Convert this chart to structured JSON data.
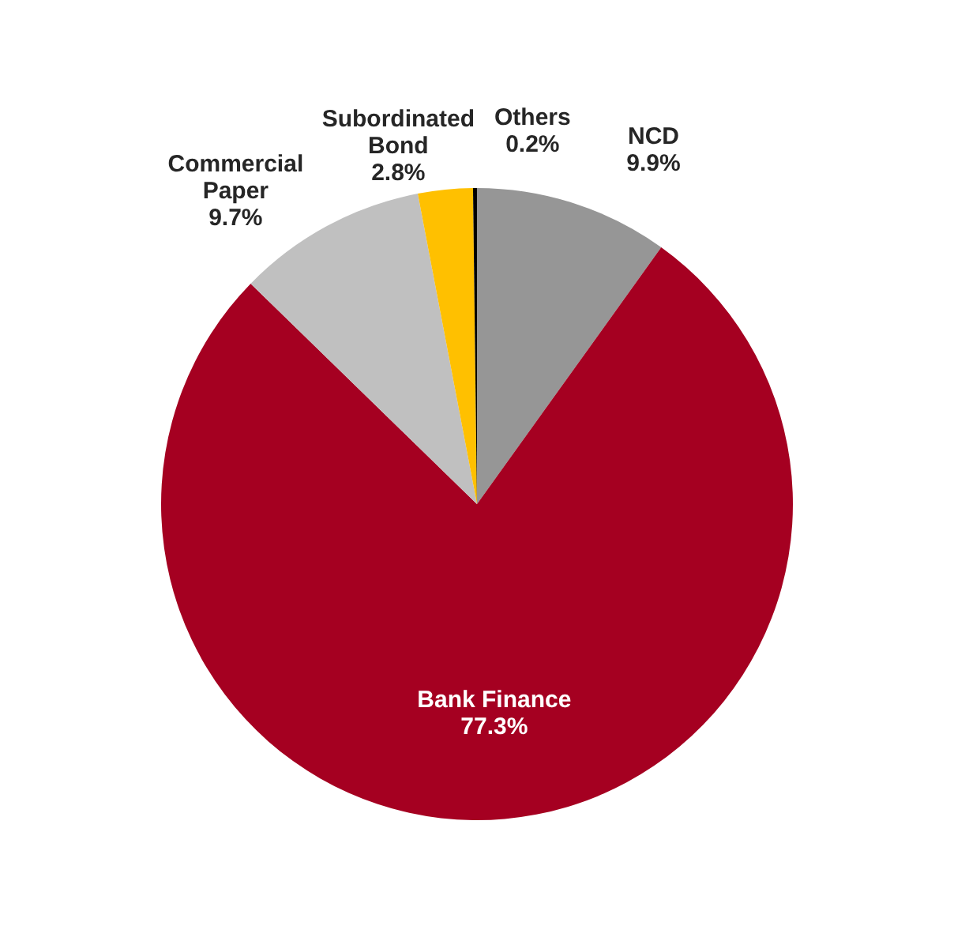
{
  "chart_data": {
    "type": "pie",
    "categories": [
      "NCD",
      "Bank Finance",
      "Commercial Paper",
      "Subordinated Bond",
      "Others"
    ],
    "values": [
      9.9,
      77.3,
      9.7,
      2.8,
      0.2
    ],
    "colors": [
      "#969696",
      "#a50021",
      "#c0c0c0",
      "#ffc000",
      "#000000"
    ],
    "value_labels": [
      "9.9%",
      "77.3%",
      "9.7%",
      "2.8%",
      "0.2%"
    ],
    "legend": false
  }
}
